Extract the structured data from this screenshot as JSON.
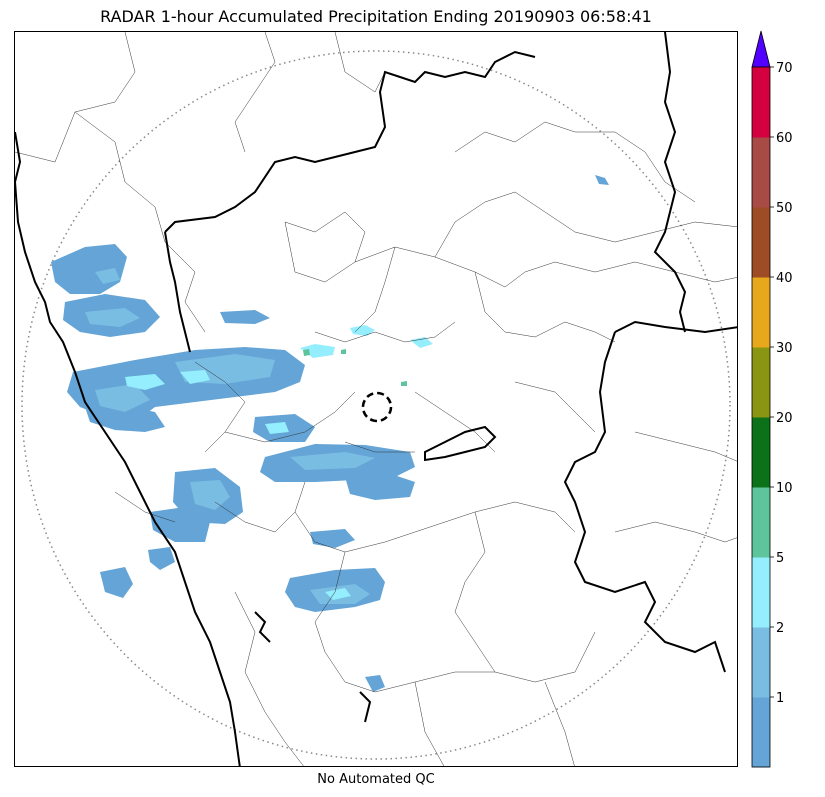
{
  "title": "RADAR 1-hour Accumulated Precipitation Ending 20190903 06:58:41",
  "footer": "No Automated QC",
  "colorbar": {
    "ticks": [
      "1",
      "2",
      "5",
      "10",
      "20",
      "30",
      "40",
      "50",
      "60",
      "70"
    ],
    "bins": [
      {
        "color": "#64a4d6"
      },
      {
        "color": "#7abde3"
      },
      {
        "color": "#94eefd"
      },
      {
        "color": "#5dc49b"
      },
      {
        "color": "#0c7219"
      },
      {
        "color": "#8a9612"
      },
      {
        "color": "#e8a81c"
      },
      {
        "color": "#9d4c26"
      },
      {
        "color": "#a84a46"
      },
      {
        "color": "#d4003f"
      }
    ],
    "extend_color": "#5200ff"
  },
  "map": {
    "boundary_color": "#000000",
    "range_ring_style": "dotted",
    "center_marker_style": "dashed-circle"
  }
}
